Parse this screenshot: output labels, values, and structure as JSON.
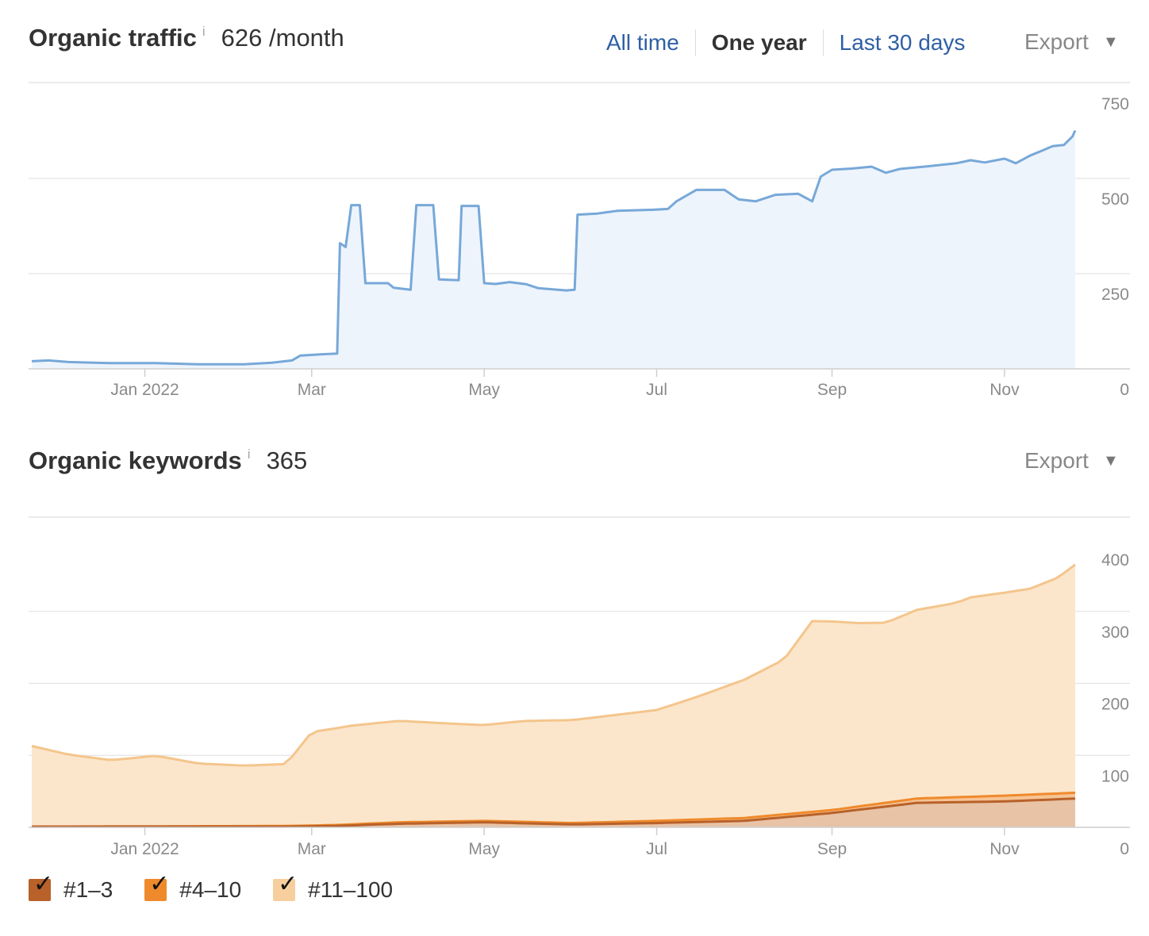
{
  "traffic": {
    "title": "Organic traffic",
    "info_mark": "i",
    "value": "626 /month",
    "range_tabs": [
      {
        "label": "All time",
        "active": false
      },
      {
        "label": "One year",
        "active": true
      },
      {
        "label": "Last 30 days",
        "active": false
      }
    ],
    "export_label": "Export",
    "caret_icon": "caret-down-icon"
  },
  "keywords": {
    "title": "Organic keywords",
    "info_mark": "i",
    "value": "365",
    "export_label": "Export",
    "caret_icon": "caret-down-icon"
  },
  "legend": [
    {
      "label": "#1–3",
      "color": "#b8612a",
      "checked": true
    },
    {
      "label": "#4–10",
      "color": "#ef8a2c",
      "checked": true
    },
    {
      "label": "#11–100",
      "color": "#f7cf9f",
      "checked": true
    }
  ],
  "chart_data": [
    {
      "type": "line",
      "title": "Organic traffic",
      "x_axis": {
        "type": "date",
        "ticks": [
          "Jan 2022",
          "Mar",
          "May",
          "Jul",
          "Sep",
          "Nov"
        ],
        "tick_dates": [
          "2022-01-01",
          "2022-03-01",
          "2022-05-01",
          "2022-07-01",
          "2022-09-01",
          "2022-11-01"
        ],
        "range": [
          "2021-11-22",
          "2022-11-26"
        ]
      },
      "y_axis": {
        "ticks": [
          0,
          250,
          500,
          750
        ],
        "range": [
          0,
          750
        ],
        "position": "right"
      },
      "grid": true,
      "area_fill": true,
      "color": "#77a8d8",
      "fill_color": "#eef4fc",
      "series": [
        {
          "values": [
            [
              "2021-11-22",
              20
            ],
            [
              "2021-11-28",
              22
            ],
            [
              "2021-12-05",
              18
            ],
            [
              "2021-12-20",
              15
            ],
            [
              "2022-01-05",
              15
            ],
            [
              "2022-01-20",
              12
            ],
            [
              "2022-02-05",
              12
            ],
            [
              "2022-02-15",
              16
            ],
            [
              "2022-02-22",
              22
            ],
            [
              "2022-02-25",
              35
            ],
            [
              "2022-03-04",
              38
            ],
            [
              "2022-03-10",
              40
            ],
            [
              "2022-03-11",
              330
            ],
            [
              "2022-03-13",
              320
            ],
            [
              "2022-03-15",
              430
            ],
            [
              "2022-03-18",
              430
            ],
            [
              "2022-03-20",
              225
            ],
            [
              "2022-03-28",
              225
            ],
            [
              "2022-03-30",
              213
            ],
            [
              "2022-04-05",
              208
            ],
            [
              "2022-04-07",
              430
            ],
            [
              "2022-04-13",
              430
            ],
            [
              "2022-04-15",
              235
            ],
            [
              "2022-04-22",
              233
            ],
            [
              "2022-04-23",
              428
            ],
            [
              "2022-04-29",
              428
            ],
            [
              "2022-05-01",
              225
            ],
            [
              "2022-05-05",
              223
            ],
            [
              "2022-05-10",
              228
            ],
            [
              "2022-05-16",
              222
            ],
            [
              "2022-05-20",
              212
            ],
            [
              "2022-05-30",
              206
            ],
            [
              "2022-06-02",
              208
            ],
            [
              "2022-06-03",
              405
            ],
            [
              "2022-06-10",
              408
            ],
            [
              "2022-06-17",
              415
            ],
            [
              "2022-06-30",
              418
            ],
            [
              "2022-07-05",
              420
            ],
            [
              "2022-07-08",
              440
            ],
            [
              "2022-07-15",
              470
            ],
            [
              "2022-07-25",
              470
            ],
            [
              "2022-07-30",
              445
            ],
            [
              "2022-08-05",
              440
            ],
            [
              "2022-08-12",
              457
            ],
            [
              "2022-08-20",
              460
            ],
            [
              "2022-08-25",
              440
            ],
            [
              "2022-08-28",
              505
            ],
            [
              "2022-09-01",
              523
            ],
            [
              "2022-09-08",
              526
            ],
            [
              "2022-09-15",
              531
            ],
            [
              "2022-09-20",
              515
            ],
            [
              "2022-09-25",
              525
            ],
            [
              "2022-10-05",
              532
            ],
            [
              "2022-10-15",
              540
            ],
            [
              "2022-10-20",
              548
            ],
            [
              "2022-10-25",
              542
            ],
            [
              "2022-11-01",
              552
            ],
            [
              "2022-11-05",
              540
            ],
            [
              "2022-11-10",
              560
            ],
            [
              "2022-11-14",
              572
            ],
            [
              "2022-11-18",
              585
            ],
            [
              "2022-11-22",
              588
            ],
            [
              "2022-11-25",
              610
            ],
            [
              "2022-11-26",
              626
            ]
          ]
        }
      ]
    },
    {
      "type": "area",
      "title": "Organic keywords",
      "stacked": true,
      "x_axis": {
        "type": "date",
        "ticks": [
          "Jan 2022",
          "Mar",
          "May",
          "Jul",
          "Sep",
          "Nov"
        ],
        "tick_dates": [
          "2022-01-01",
          "2022-03-01",
          "2022-05-01",
          "2022-07-01",
          "2022-09-01",
          "2022-11-01"
        ],
        "range": [
          "2021-11-22",
          "2022-11-26"
        ]
      },
      "y_axis": {
        "ticks": [
          0,
          100,
          200,
          300,
          400
        ],
        "range": [
          0,
          400
        ],
        "position": "right"
      },
      "grid": true,
      "series": [
        {
          "name": "#1–3",
          "color": "#b8612a",
          "fill": "#e8c3a6",
          "values": [
            [
              "2021-11-22",
              1
            ],
            [
              "2022-02-20",
              1
            ],
            [
              "2022-03-10",
              2
            ],
            [
              "2022-04-01",
              5
            ],
            [
              "2022-05-01",
              7
            ],
            [
              "2022-06-01",
              4
            ],
            [
              "2022-07-01",
              6
            ],
            [
              "2022-08-01",
              9
            ],
            [
              "2022-09-01",
              20
            ],
            [
              "2022-10-01",
              34
            ],
            [
              "2022-11-01",
              36
            ],
            [
              "2022-11-26",
              40
            ]
          ]
        },
        {
          "name": "#4–10",
          "color": "#ef8a2c",
          "fill": "#f6c394",
          "values": [
            [
              "2021-11-22",
              0
            ],
            [
              "2022-03-01",
              1
            ],
            [
              "2022-04-01",
              2
            ],
            [
              "2022-05-01",
              2
            ],
            [
              "2022-06-01",
              2
            ],
            [
              "2022-07-01",
              3
            ],
            [
              "2022-08-01",
              4
            ],
            [
              "2022-09-01",
              4
            ],
            [
              "2022-10-01",
              6
            ],
            [
              "2022-11-01",
              8
            ],
            [
              "2022-11-26",
              8
            ]
          ]
        },
        {
          "name": "#11–100",
          "color": "#f4c58c",
          "fill": "#fbe6cc",
          "values": [
            [
              "2021-11-22",
              112
            ],
            [
              "2021-12-05",
              100
            ],
            [
              "2021-12-20",
              92
            ],
            [
              "2022-01-05",
              98
            ],
            [
              "2022-01-20",
              87
            ],
            [
              "2022-02-05",
              84
            ],
            [
              "2022-02-20",
              86
            ],
            [
              "2022-03-01",
              130
            ],
            [
              "2022-03-15",
              137
            ],
            [
              "2022-04-01",
              141
            ],
            [
              "2022-04-15",
              137
            ],
            [
              "2022-05-01",
              133
            ],
            [
              "2022-05-15",
              140
            ],
            [
              "2022-06-01",
              143
            ],
            [
              "2022-06-15",
              148
            ],
            [
              "2022-07-01",
              154
            ],
            [
              "2022-07-15",
              170
            ],
            [
              "2022-08-01",
              192
            ],
            [
              "2022-08-15",
              215
            ],
            [
              "2022-08-25",
              265
            ],
            [
              "2022-09-01",
              262
            ],
            [
              "2022-09-10",
              255
            ],
            [
              "2022-09-20",
              250
            ],
            [
              "2022-10-01",
              262
            ],
            [
              "2022-10-15",
              270
            ],
            [
              "2022-10-20",
              277
            ],
            [
              "2022-11-01",
              282
            ],
            [
              "2022-11-10",
              286
            ],
            [
              "2022-11-20",
              300
            ],
            [
              "2022-11-26",
              317
            ]
          ]
        }
      ]
    }
  ]
}
